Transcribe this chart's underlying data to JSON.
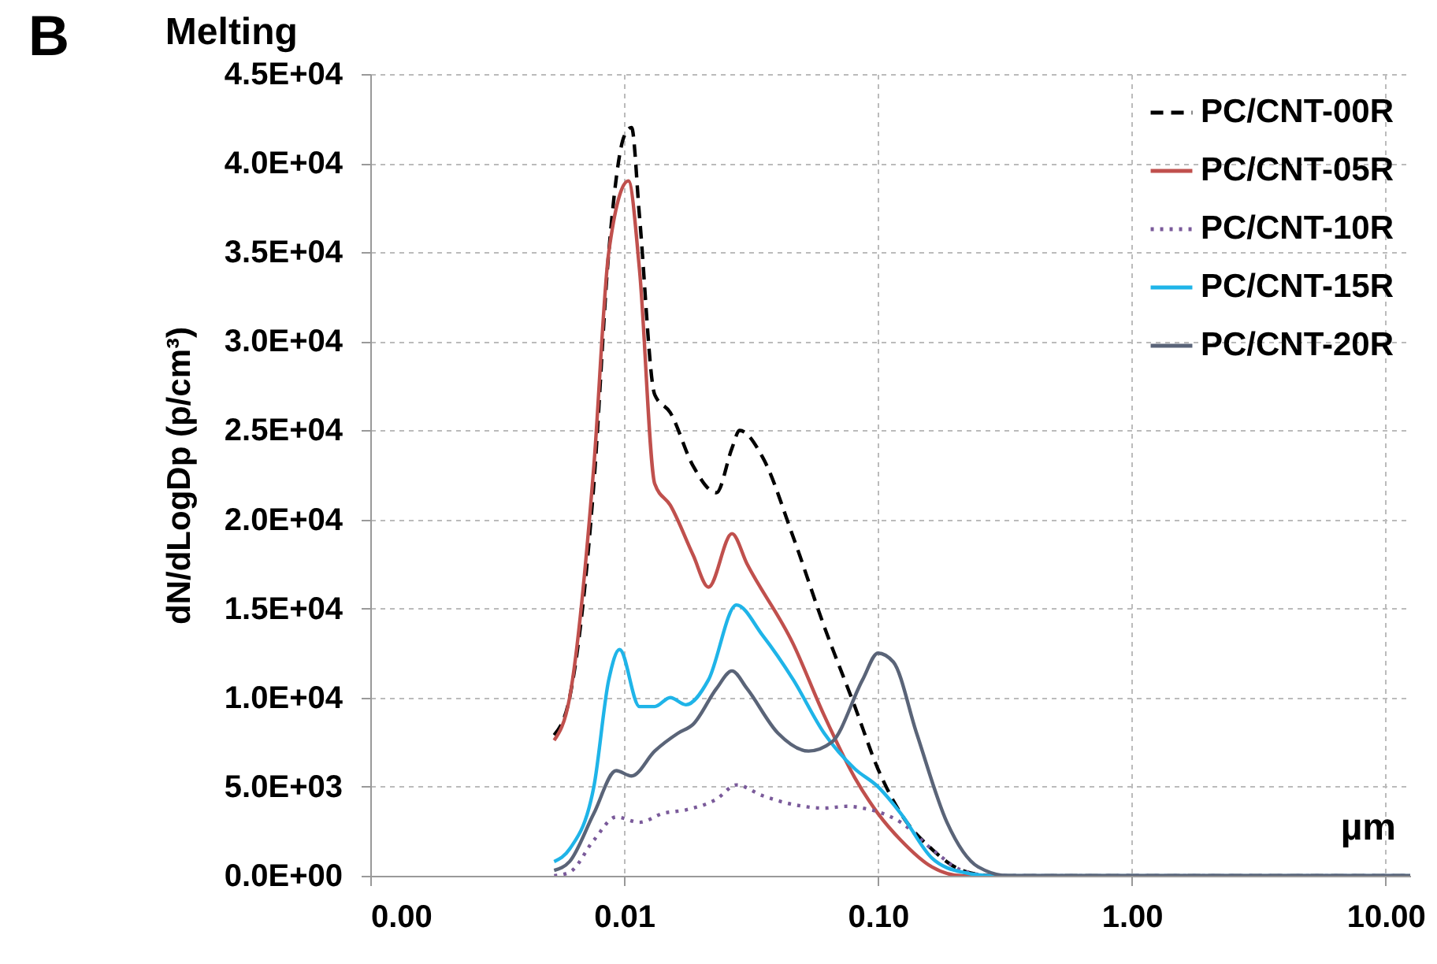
{
  "chart_data": {
    "type": "line",
    "title": "Melting",
    "ylabel": "dN/dLogDp (p/cm³)",
    "annotations": [
      "B",
      "µm"
    ],
    "log": "x",
    "grid": true,
    "legend": "top right",
    "xlim": [
      0.001,
      12.5
    ],
    "ylim": [
      0,
      45000
    ],
    "xticks": [
      {
        "value": 0.001,
        "label": "0.00"
      },
      {
        "value": 0.01,
        "label": "0.01"
      },
      {
        "value": 0.1,
        "label": "0.10"
      },
      {
        "value": 1,
        "label": "1.00"
      },
      {
        "value": 10,
        "label": "10.00"
      }
    ],
    "yticks": [
      {
        "value": 0,
        "label": "0.0E+00"
      },
      {
        "value": 5000,
        "label": "5.0E+03"
      },
      {
        "value": 10000,
        "label": "1.0E+04"
      },
      {
        "value": 15000,
        "label": "1.5E+04"
      },
      {
        "value": 20000,
        "label": "2.0E+04"
      },
      {
        "value": 25000,
        "label": "2.5E+04"
      },
      {
        "value": 30000,
        "label": "3.0E+04"
      },
      {
        "value": 35000,
        "label": "3.5E+04"
      },
      {
        "value": 40000,
        "label": "4.0E+04"
      },
      {
        "value": 45000,
        "label": "4.5E+04"
      }
    ],
    "series": [
      {
        "name": "PC/CNT-00R",
        "color": "#000000",
        "line_style": "dashed",
        "x": [
          0.0053,
          0.0061,
          0.0076,
          0.0087,
          0.01,
          0.0107,
          0.0115,
          0.0132,
          0.0152,
          0.0187,
          0.0231,
          0.0266,
          0.0285,
          0.0351,
          0.0464,
          0.0614,
          0.0811,
          0.1,
          0.123,
          0.163,
          0.215,
          0.285,
          12.5
        ],
        "values": [
          7900,
          10000,
          22000,
          35000,
          41500,
          42000,
          37000,
          27000,
          26000,
          23000,
          21500,
          24000,
          25000,
          23500,
          19000,
          14000,
          9500,
          6000,
          3500,
          1500,
          300,
          0,
          0
        ]
      },
      {
        "name": "PC/CNT-05R",
        "color": "#c0504d",
        "line_style": "solid",
        "x": [
          0.0053,
          0.0061,
          0.0076,
          0.0087,
          0.0104,
          0.0115,
          0.0132,
          0.0152,
          0.0187,
          0.0215,
          0.0266,
          0.0305,
          0.0464,
          0.0614,
          0.0811,
          0.1,
          0.123,
          0.163,
          0.215,
          12.5
        ],
        "values": [
          7600,
          10000,
          23000,
          35000,
          39000,
          34000,
          22000,
          20800,
          18000,
          16200,
          19200,
          17500,
          13000,
          9000,
          5500,
          3500,
          2000,
          500,
          0,
          0
        ]
      },
      {
        "name": "PC/CNT-10R",
        "color": "#7a5a9a",
        "line_style": "dotted",
        "x": [
          0.0053,
          0.0061,
          0.0076,
          0.0093,
          0.0115,
          0.0142,
          0.0175,
          0.0231,
          0.0277,
          0.0351,
          0.0464,
          0.0614,
          0.0757,
          0.087,
          0.123,
          0.163,
          0.215,
          0.285,
          12.5
        ],
        "values": [
          0,
          200,
          2000,
          3300,
          3000,
          3500,
          3700,
          4300,
          5100,
          4500,
          4000,
          3800,
          3900,
          3800,
          3000,
          1500,
          300,
          0,
          0
        ]
      },
      {
        "name": "PC/CNT-15R",
        "color": "#1fb4e8",
        "line_style": "solid",
        "x": [
          0.0053,
          0.0061,
          0.0076,
          0.0087,
          0.0096,
          0.0115,
          0.0132,
          0.0152,
          0.0175,
          0.0215,
          0.0277,
          0.0351,
          0.0464,
          0.0614,
          0.0811,
          0.1,
          0.123,
          0.163,
          0.215,
          0.285,
          12.5
        ],
        "values": [
          800,
          1500,
          5000,
          11000,
          12700,
          9500,
          9500,
          10000,
          9600,
          11000,
          15200,
          13500,
          11000,
          8000,
          6000,
          5000,
          3500,
          1000,
          200,
          0,
          0
        ]
      },
      {
        "name": "PC/CNT-20R",
        "color": "#5a6478",
        "line_style": "solid",
        "x": [
          0.0053,
          0.0061,
          0.0076,
          0.0093,
          0.0107,
          0.0132,
          0.0163,
          0.0187,
          0.0231,
          0.0266,
          0.0305,
          0.0404,
          0.0533,
          0.0658,
          0.087,
          0.1,
          0.115,
          0.142,
          0.187,
          0.248,
          0.327,
          12.5
        ],
        "values": [
          300,
          800,
          3500,
          5900,
          5600,
          7000,
          8000,
          8500,
          10500,
          11500,
          10500,
          8000,
          7000,
          7500,
          11000,
          12500,
          12000,
          8000,
          3000,
          500,
          0,
          0
        ]
      }
    ]
  }
}
